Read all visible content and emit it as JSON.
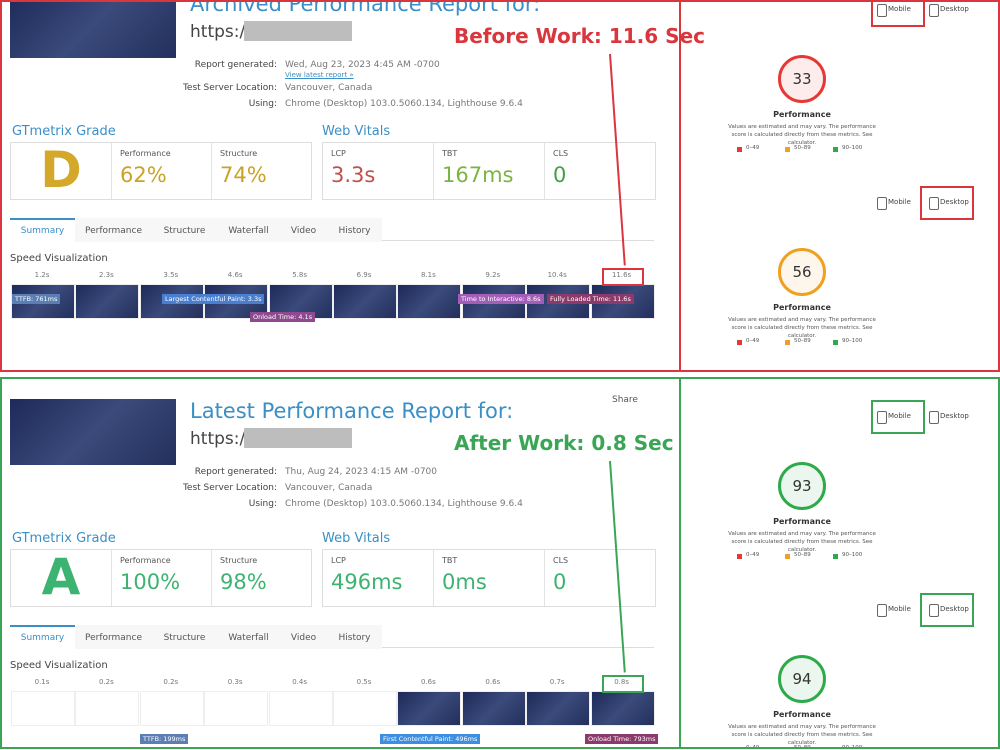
{
  "panels": [
    {
      "heading": "Archived Performance Report for:",
      "url": "https://",
      "annotation": "Before Work: 11.6 Sec",
      "report_info": [
        {
          "label": "Report generated:",
          "value": "Wed, Aug 23, 2023 4:45 AM -0700",
          "link": "View latest report »"
        },
        {
          "label": "Test Server Location:",
          "value": "Vancouver, Canada"
        },
        {
          "label": "Using:",
          "value": "Chrome (Desktop) 103.0.5060.134, Lighthouse 9.6.4"
        }
      ],
      "grade_title": "GTmetrix Grade",
      "grade": "D",
      "grade_color": "#d4a82a",
      "metrics": [
        {
          "label": "Performance",
          "value": "62%",
          "color": "#c9a227"
        },
        {
          "label": "Structure",
          "value": "74%",
          "color": "#c9a227"
        }
      ],
      "vitals_title": "Web Vitals",
      "vitals": [
        {
          "label": "LCP",
          "value": "3.3s",
          "color": "#c0504d"
        },
        {
          "label": "TBT",
          "value": "167ms",
          "color": "#7cb342"
        },
        {
          "label": "CLS",
          "value": "0",
          "color": "#43a047"
        }
      ],
      "tabs": [
        "Summary",
        "Performance",
        "Structure",
        "Waterfall",
        "Video",
        "History"
      ],
      "speed_title": "Speed Visualization",
      "frames": [
        "1.2s",
        "2.3s",
        "3.5s",
        "4.6s",
        "5.8s",
        "6.9s",
        "8.1s",
        "9.2s",
        "10.4s",
        "11.6s"
      ],
      "markers": [
        "TTFB: 761ms",
        "Largest Contentful Paint: 3.3s",
        "Onload Time: 4.1s",
        "Time to Interactive: 8.6s",
        "Fully Loaded Time: 11.6s"
      ],
      "devices": [
        "Mobile",
        "Desktop"
      ],
      "scores": [
        {
          "score": "33",
          "label": "Performance",
          "color": "#e53935"
        },
        {
          "score": "56",
          "label": "Performance",
          "color": "#f0a020"
        }
      ],
      "note": "Values are estimated and may vary. The performance score is calculated directly from these metrics. See calculator.",
      "legend": [
        "0–49",
        "50–89",
        "90–100"
      ]
    },
    {
      "heading": "Latest Performance Report for:",
      "url": "https://",
      "annotation": "After Work: 0.8 Sec",
      "share": "Share",
      "report_info": [
        {
          "label": "Report generated:",
          "value": "Thu, Aug 24, 2023 4:15 AM -0700"
        },
        {
          "label": "Test Server Location:",
          "value": "Vancouver, Canada"
        },
        {
          "label": "Using:",
          "value": "Chrome (Desktop) 103.0.5060.134, Lighthouse 9.6.4"
        }
      ],
      "grade_title": "GTmetrix Grade",
      "grade": "A",
      "grade_color": "#3cb371",
      "metrics": [
        {
          "label": "Performance",
          "value": "100%",
          "color": "#3cb371"
        },
        {
          "label": "Structure",
          "value": "98%",
          "color": "#3cb371"
        }
      ],
      "vitals_title": "Web Vitals",
      "vitals": [
        {
          "label": "LCP",
          "value": "496ms",
          "color": "#3cb371"
        },
        {
          "label": "TBT",
          "value": "0ms",
          "color": "#3cb371"
        },
        {
          "label": "CLS",
          "value": "0",
          "color": "#3cb371"
        }
      ],
      "tabs": [
        "Summary",
        "Performance",
        "Structure",
        "Waterfall",
        "Video",
        "History"
      ],
      "speed_title": "Speed Visualization",
      "frames": [
        "0.1s",
        "0.2s",
        "0.2s",
        "0.3s",
        "0.4s",
        "0.5s",
        "0.6s",
        "0.6s",
        "0.7s",
        "0.8s"
      ],
      "markers": [
        "TTFB: 199ms",
        "First Contentful Paint: 496ms",
        "Onload Time: 793ms"
      ],
      "devices": [
        "Mobile",
        "Desktop"
      ],
      "scores": [
        {
          "score": "93",
          "label": "Performance",
          "color": "#2eaa4a"
        },
        {
          "score": "94",
          "label": "Performance",
          "color": "#2eaa4a"
        }
      ],
      "note": "Values are estimated and may vary. The performance score is calculated directly from these metrics. See calculator.",
      "legend": [
        "0–49",
        "50–89",
        "90–100"
      ]
    }
  ]
}
